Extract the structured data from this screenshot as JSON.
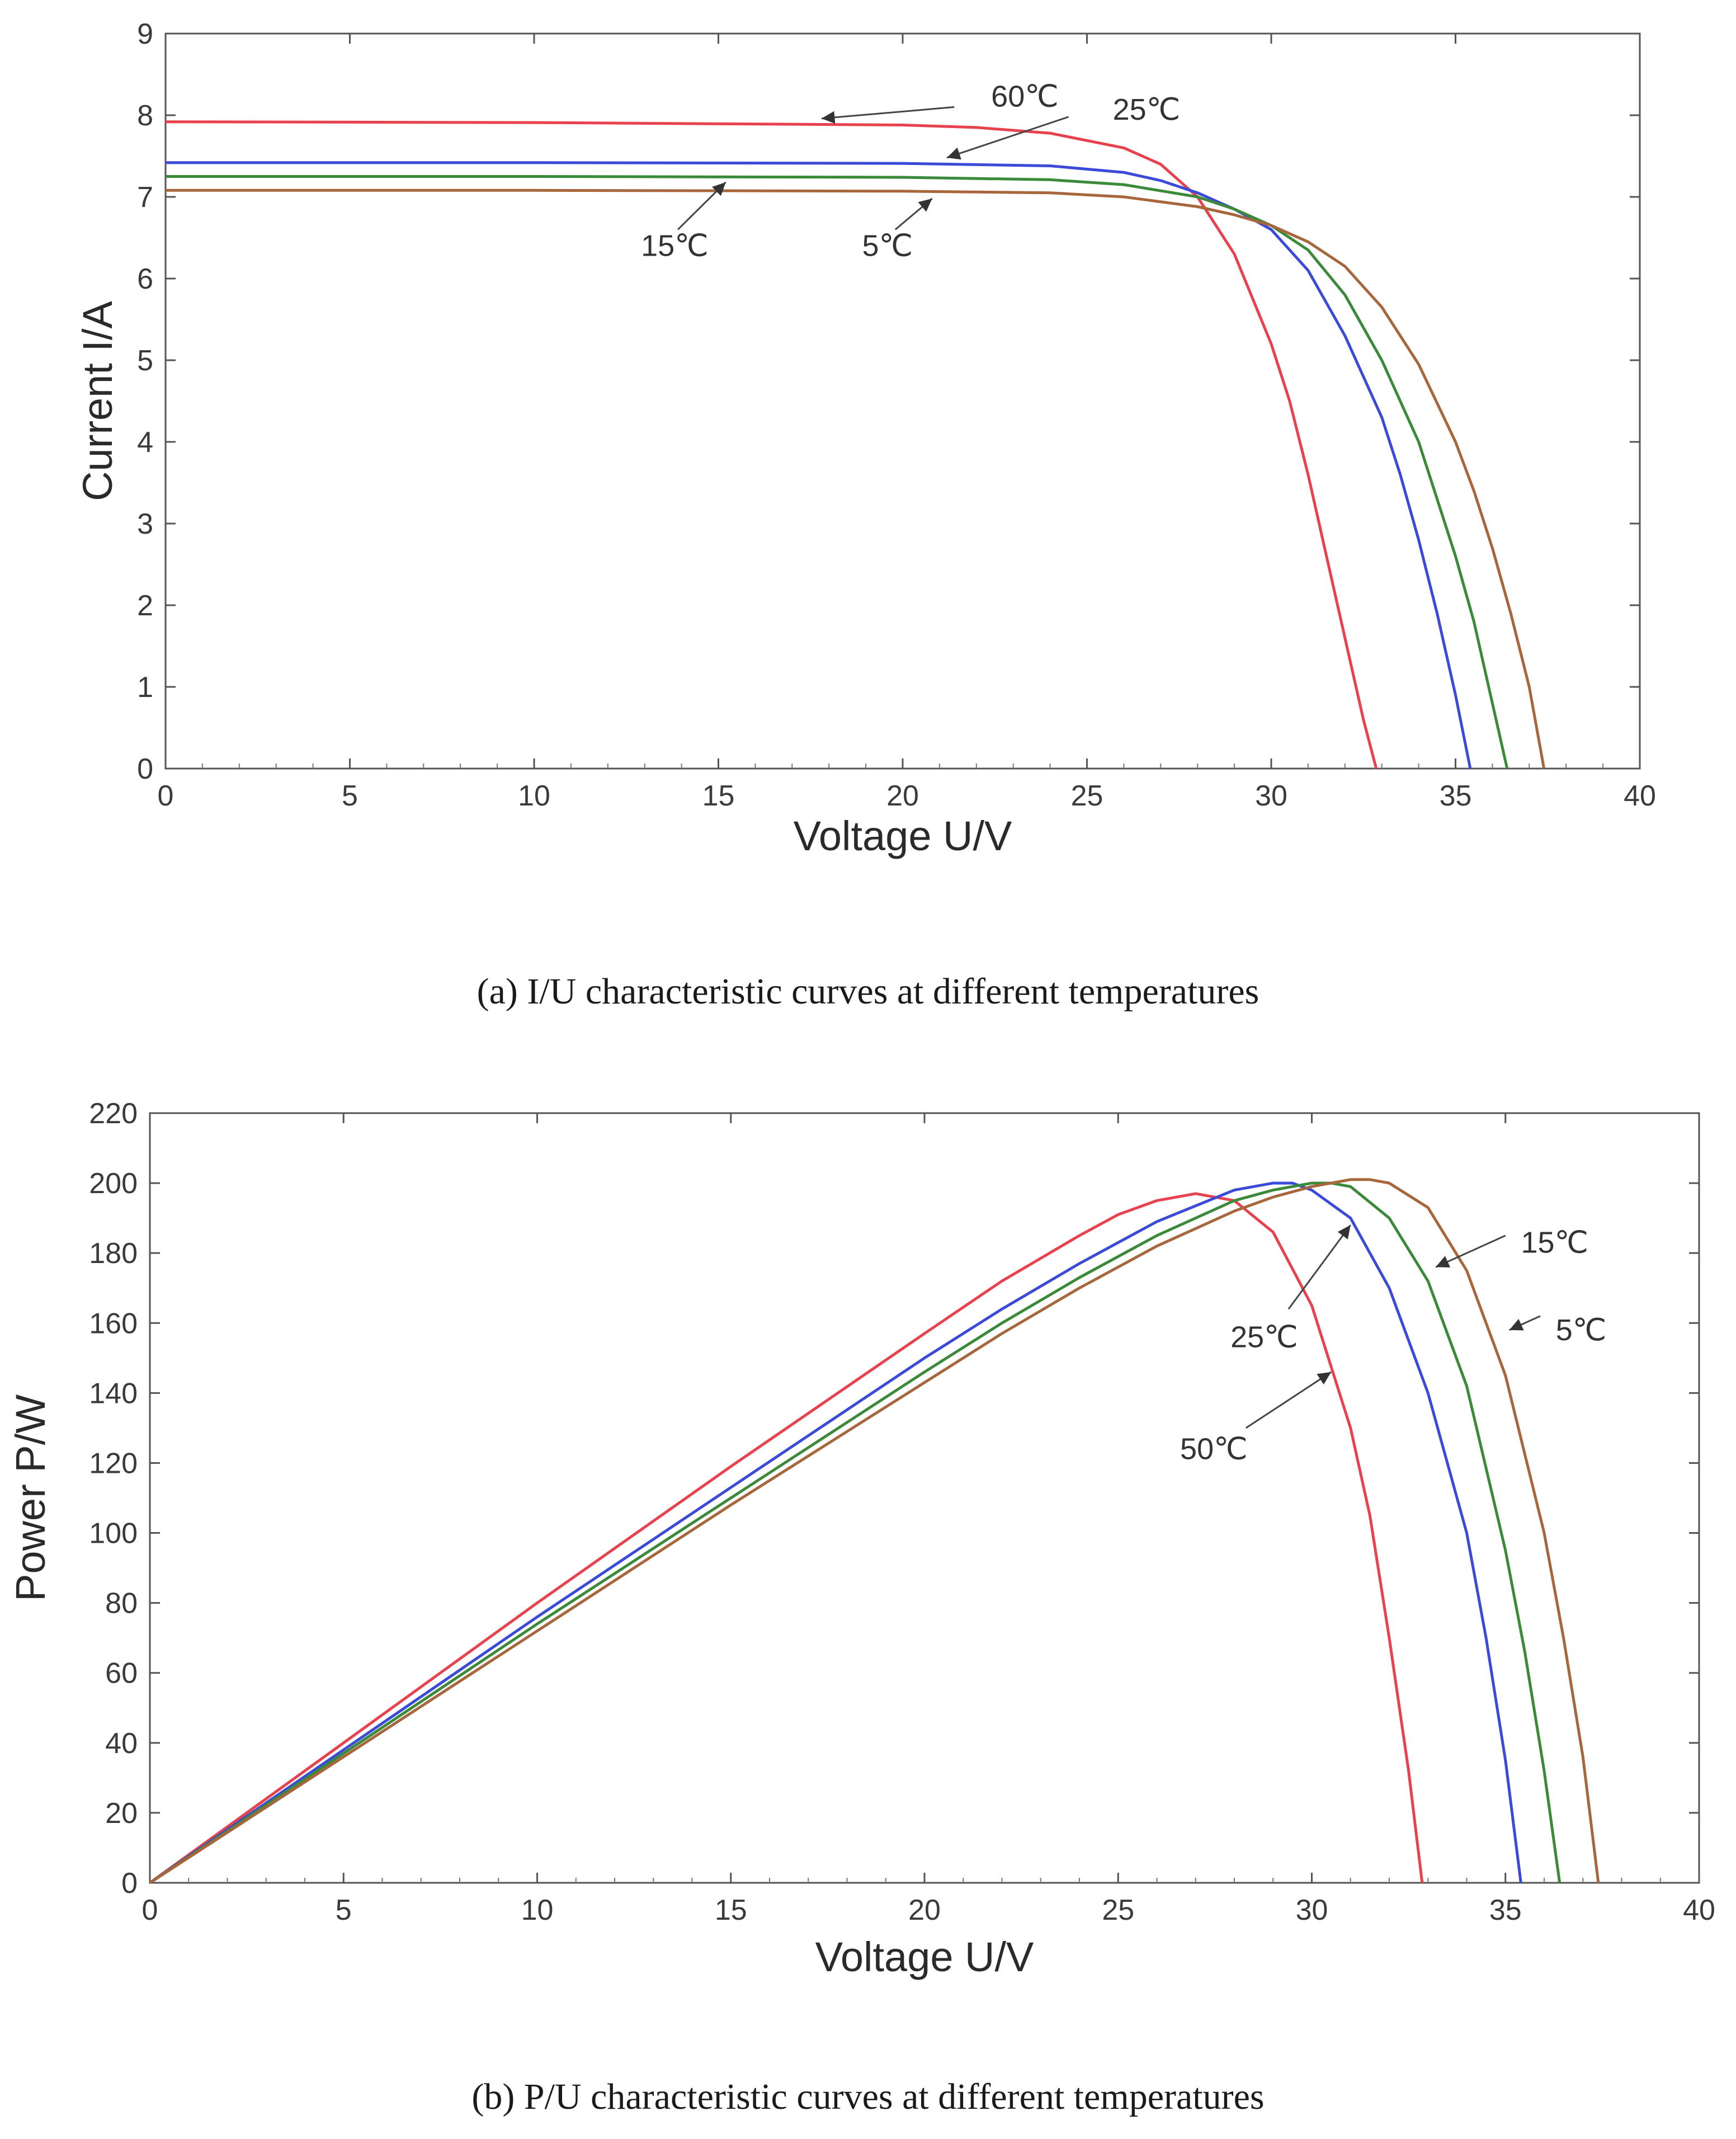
{
  "chart_data": [
    {
      "type": "line",
      "caption": "(a) I/U characteristic curves at different temperatures",
      "xlabel": "Voltage U/V",
      "ylabel": "Current I/A",
      "xlim": [
        0,
        40
      ],
      "ylim": [
        0,
        9
      ],
      "xticks": [
        "0",
        "5",
        "10",
        "15",
        "20",
        "25",
        "30",
        "35",
        "40"
      ],
      "yticks": [
        "0",
        "1",
        "2",
        "3",
        "4",
        "5",
        "6",
        "7",
        "8",
        "9"
      ],
      "grid": false,
      "series": [
        {
          "name": "60℃",
          "color": "#e8424e",
          "x": [
            0,
            10,
            20,
            22,
            24,
            26,
            27,
            28,
            29,
            30,
            30.5,
            31,
            31.5,
            32,
            32.5,
            32.85
          ],
          "y": [
            7.92,
            7.91,
            7.88,
            7.85,
            7.78,
            7.6,
            7.4,
            7.0,
            6.3,
            5.2,
            4.5,
            3.6,
            2.6,
            1.6,
            0.6,
            0
          ]
        },
        {
          "name": "25℃",
          "color": "#3b4bd8",
          "x": [
            0,
            10,
            20,
            24,
            26,
            27,
            28,
            29,
            30,
            31,
            32,
            33,
            33.5,
            34,
            34.5,
            35,
            35.4
          ],
          "y": [
            7.42,
            7.42,
            7.41,
            7.38,
            7.3,
            7.2,
            7.05,
            6.85,
            6.6,
            6.1,
            5.3,
            4.3,
            3.6,
            2.8,
            1.9,
            0.9,
            0
          ]
        },
        {
          "name": "15℃",
          "color": "#3a8a3a",
          "x": [
            0,
            10,
            20,
            24,
            26,
            28,
            29,
            30,
            31,
            32,
            33,
            34,
            34.5,
            35,
            35.5,
            36,
            36.4
          ],
          "y": [
            7.25,
            7.25,
            7.24,
            7.21,
            7.15,
            7.0,
            6.85,
            6.65,
            6.35,
            5.8,
            5.0,
            4.0,
            3.3,
            2.6,
            1.8,
            0.8,
            0
          ]
        },
        {
          "name": "5℃",
          "color": "#a8663c",
          "x": [
            0,
            10,
            20,
            24,
            26,
            28,
            29,
            30,
            31,
            32,
            33,
            34,
            35,
            35.5,
            36,
            36.5,
            37,
            37.4
          ],
          "y": [
            7.08,
            7.08,
            7.07,
            7.05,
            7.0,
            6.88,
            6.78,
            6.65,
            6.45,
            6.15,
            5.65,
            4.95,
            4.0,
            3.4,
            2.7,
            1.9,
            1.0,
            0
          ]
        }
      ],
      "annotations": [
        {
          "text": "60℃",
          "label_x": 22.4,
          "label_y": 8.23,
          "arrow_from": [
            21.4,
            8.1
          ],
          "arrow_to": [
            17.8,
            7.96
          ]
        },
        {
          "text": "25℃",
          "label_x": 25.7,
          "label_y": 8.07,
          "arrow_from": [
            24.5,
            7.98
          ],
          "arrow_to": [
            21.2,
            7.48
          ]
        },
        {
          "text": "15℃",
          "label_x": 12.9,
          "label_y": 6.4,
          "arrow_from": [
            13.9,
            6.6
          ],
          "arrow_to": [
            15.2,
            7.18
          ]
        },
        {
          "text": "5℃",
          "label_x": 18.9,
          "label_y": 6.4,
          "arrow_from": [
            19.8,
            6.6
          ],
          "arrow_to": [
            20.8,
            6.98
          ]
        }
      ]
    },
    {
      "type": "line",
      "caption": "(b) P/U characteristic curves at different temperatures",
      "xlabel": "Voltage U/V",
      "ylabel": "Power P/W",
      "xlim": [
        0,
        40
      ],
      "ylim": [
        0,
        220
      ],
      "xticks": [
        "0",
        "5",
        "10",
        "15",
        "20",
        "25",
        "30",
        "35",
        "40"
      ],
      "yticks": [
        "0",
        "20",
        "40",
        "60",
        "80",
        "100",
        "120",
        "140",
        "160",
        "180",
        "200",
        "220"
      ],
      "grid": false,
      "series": [
        {
          "name": "50℃",
          "color": "#e8424e",
          "x": [
            0,
            5,
            10,
            15,
            20,
            22,
            24,
            25,
            26,
            27,
            28,
            29,
            30,
            31,
            31.5,
            32,
            32.5,
            32.85
          ],
          "y": [
            0,
            40,
            80,
            119,
            157,
            172,
            185,
            191,
            195,
            197,
            195,
            186,
            165,
            130,
            105,
            70,
            32,
            0
          ]
        },
        {
          "name": "25℃",
          "color": "#3b4bd8",
          "x": [
            0,
            5,
            10,
            15,
            20,
            22,
            24,
            26,
            28,
            29,
            29.5,
            30,
            31,
            32,
            33,
            34,
            34.5,
            35,
            35.4
          ],
          "y": [
            0,
            38,
            76,
            113,
            150,
            164,
            177,
            189,
            198,
            200,
            200,
            198,
            190,
            170,
            140,
            100,
            70,
            35,
            0
          ]
        },
        {
          "name": "15℃",
          "color": "#3a8a3a",
          "x": [
            0,
            5,
            10,
            15,
            20,
            22,
            24,
            26,
            28,
            29,
            30,
            30.5,
            31,
            32,
            33,
            34,
            35,
            35.5,
            36,
            36.4
          ],
          "y": [
            0,
            37,
            74,
            110,
            146,
            160,
            173,
            185,
            195,
            198,
            200,
            200,
            199,
            190,
            172,
            142,
            95,
            66,
            32,
            0
          ]
        },
        {
          "name": "5℃",
          "color": "#a8663c",
          "x": [
            0,
            5,
            10,
            15,
            20,
            22,
            24,
            26,
            28,
            29,
            30,
            31,
            31.5,
            32,
            33,
            34,
            35,
            36,
            36.5,
            37,
            37.4
          ],
          "y": [
            0,
            36,
            72,
            108,
            143,
            157,
            170,
            182,
            192,
            196,
            199,
            201,
            201,
            200,
            193,
            175,
            145,
            100,
            70,
            36,
            0
          ]
        }
      ],
      "annotations": [
        {
          "text": "15℃",
          "label_x": 35.4,
          "label_y": 183,
          "arrow_from": [
            35.0,
            185
          ],
          "arrow_to": [
            33.2,
            176
          ]
        },
        {
          "text": "5℃",
          "label_x": 36.3,
          "label_y": 158,
          "arrow_from": [
            35.9,
            162
          ],
          "arrow_to": [
            35.1,
            158
          ]
        },
        {
          "text": "25℃",
          "label_x": 27.9,
          "label_y": 156,
          "arrow_from": [
            29.4,
            164
          ],
          "arrow_to": [
            31.0,
            188
          ]
        },
        {
          "text": "50℃",
          "label_x": 26.6,
          "label_y": 124,
          "arrow_from": [
            28.3,
            130
          ],
          "arrow_to": [
            30.5,
            146
          ]
        }
      ]
    }
  ]
}
